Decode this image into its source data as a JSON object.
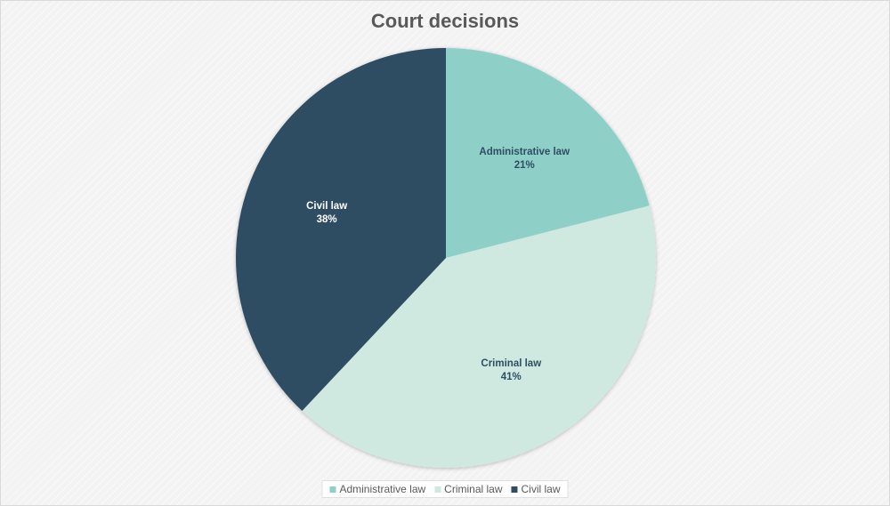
{
  "chart_data": {
    "type": "pie",
    "title": "Court decisions",
    "slices": [
      {
        "label": "Administrative law",
        "value": 21,
        "display": "21%",
        "color": "#8ecfc7",
        "text_color": "#2e4e63"
      },
      {
        "label": "Criminal law",
        "value": 41,
        "display": "41%",
        "color": "#cfe8e0",
        "text_color": "#2e4e63"
      },
      {
        "label": "Civil law",
        "value": 38,
        "display": "38%",
        "color": "#2e4d63",
        "text_color": "#ffffff"
      }
    ],
    "legend": {
      "position": "bottom",
      "entries": [
        "Administrative law",
        "Criminal law",
        "Civil law"
      ]
    }
  }
}
